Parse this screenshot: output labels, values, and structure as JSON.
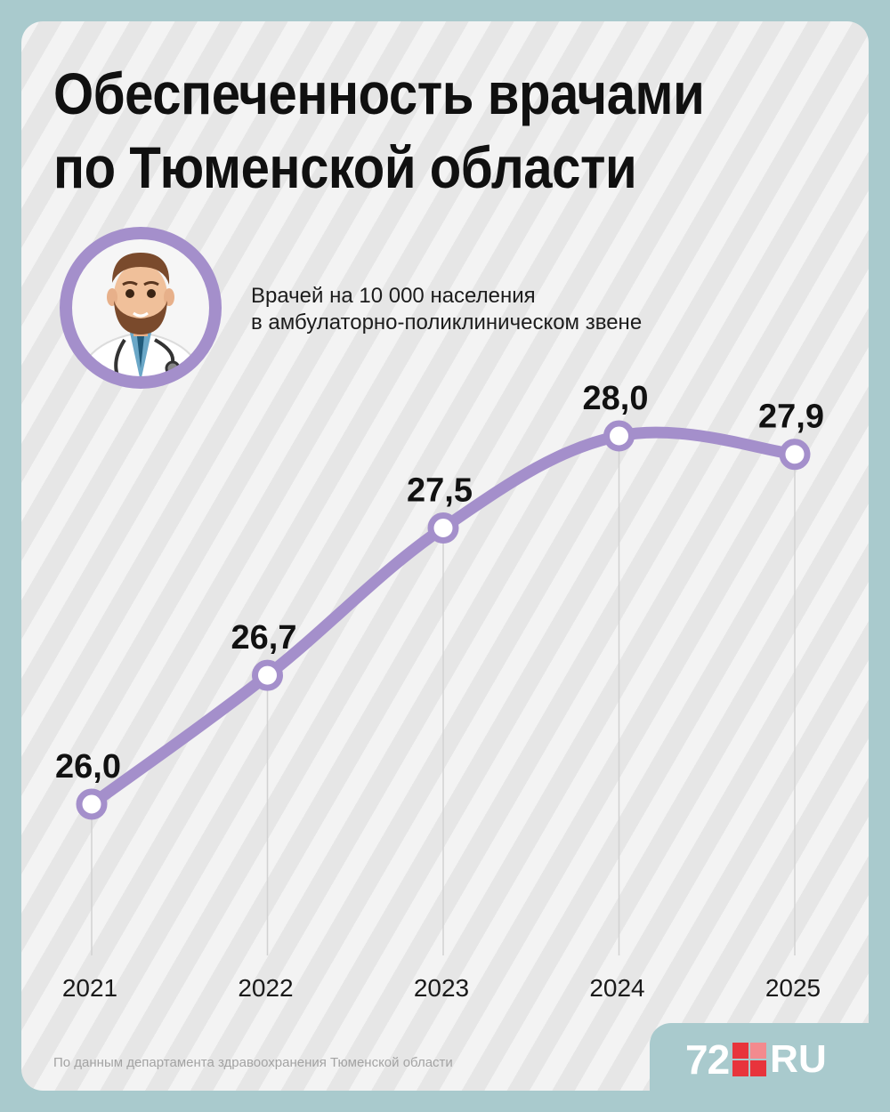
{
  "header": {
    "title_line1": "Обеспеченность врачами",
    "title_line2": "по Тюменской области"
  },
  "subtitle": {
    "line1": "Врачей на 10 000 населения",
    "line2": "в амбулаторно-поликлиническом звене"
  },
  "illustration": {
    "icon": "doctor-avatar-icon"
  },
  "chart_data": {
    "type": "line",
    "categories": [
      "2021",
      "2022",
      "2023",
      "2024",
      "2025"
    ],
    "values": [
      26.0,
      26.7,
      27.5,
      28.0,
      27.9
    ],
    "value_labels": [
      "26,0",
      "26,7",
      "27,5",
      "28,0",
      "27,9"
    ],
    "title": "",
    "xlabel": "",
    "ylabel": "",
    "grid": false,
    "smooth": true,
    "line_color": "#a48fcb",
    "marker_fill": "#ffffff"
  },
  "footer": {
    "source": "По данным департамента здравоохранения Тюменской области",
    "logo_number": "72",
    "logo_domain": "RU"
  },
  "colors": {
    "background": "#a9cacd",
    "card": "#f1f1f1",
    "accent": "#a48fcb",
    "logo_red": "#e8343c"
  }
}
